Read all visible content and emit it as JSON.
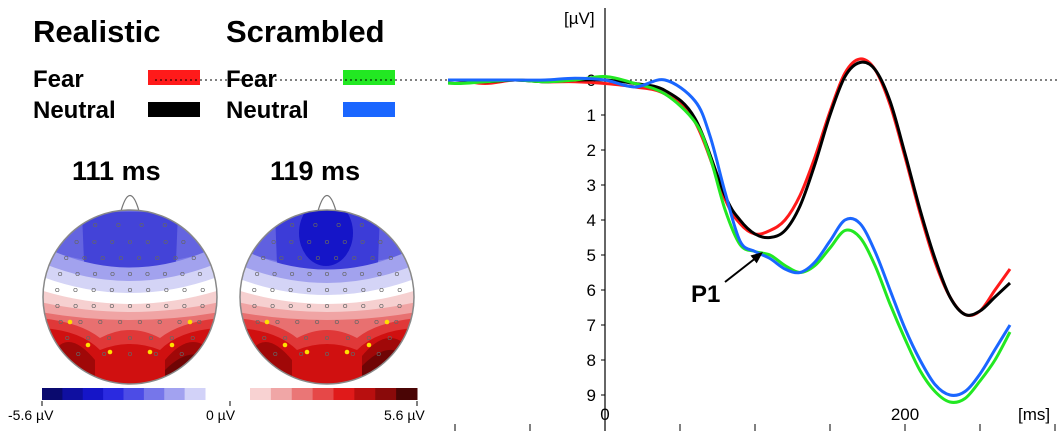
{
  "headers": {
    "realistic": "Realistic",
    "scrambled": "Scrambled"
  },
  "legend": {
    "realistic": [
      {
        "label": "Fear",
        "color": "#ff1a1a"
      },
      {
        "label": "Neutral",
        "color": "#000000"
      }
    ],
    "scrambled": [
      {
        "label": "Fear",
        "color": "#22e822"
      },
      {
        "label": "Neutral",
        "color": "#1a66ff"
      }
    ]
  },
  "topomaps": [
    {
      "latency": "111 ms"
    },
    {
      "latency": "119 ms"
    }
  ],
  "colorbar": {
    "min_label": "-5.6 µV",
    "zero_label": "0 µV",
    "max_label": "5.6 µV",
    "negative_colors": [
      "#0a0a6e",
      "#0f0fa0",
      "#1515c8",
      "#2a2ae0",
      "#4c4ce6",
      "#7676ea",
      "#a2a2f0",
      "#d2d2f8"
    ],
    "positive_colors": [
      "#f8d2d2",
      "#f0a6a6",
      "#ea7676",
      "#e64848",
      "#e01a1a",
      "#b80f0f",
      "#8a0a0a",
      "#4a0505"
    ]
  },
  "chart_data": {
    "type": "line",
    "ylabel": "[µV]",
    "xlabel": "[ms]",
    "y_inverted": true,
    "yticks": [
      0,
      1,
      2,
      3,
      4,
      5,
      6,
      7,
      8,
      9
    ],
    "xticks_labeled": [
      0,
      200
    ],
    "xlim": [
      -300,
      270
    ],
    "ylim": [
      -0.9,
      9.6
    ],
    "annotation": {
      "text": "P1",
      "x": 100,
      "y": 5.0
    },
    "series": [
      {
        "name": "Realistic Fear",
        "color": "#ff1a1a",
        "x": [
          -300,
          -280,
          -260,
          -240,
          -220,
          -200,
          -180,
          -160,
          -140,
          -120,
          -100,
          -80,
          -60,
          -40,
          -20,
          0,
          20,
          40,
          60,
          80,
          90,
          100,
          110,
          120,
          130,
          140,
          150,
          160,
          170,
          180,
          190,
          200,
          210,
          220,
          230,
          240,
          250,
          260,
          270
        ],
        "y": [
          0.1,
          0.0,
          -0.1,
          0.0,
          0.1,
          -0.1,
          0.0,
          0.1,
          -0.1,
          0.05,
          0.0,
          0.1,
          0.0,
          0.05,
          0.05,
          0.1,
          0.2,
          0.4,
          1.2,
          3.4,
          4.1,
          4.4,
          4.3,
          4.0,
          3.3,
          2.2,
          0.9,
          -0.2,
          -0.6,
          -0.3,
          0.7,
          2.2,
          3.8,
          5.2,
          6.2,
          6.7,
          6.6,
          6.0,
          5.4
        ]
      },
      {
        "name": "Realistic Neutral",
        "color": "#000000",
        "x": [
          -300,
          -280,
          -260,
          -240,
          -220,
          -200,
          -180,
          -160,
          -140,
          -120,
          -100,
          -80,
          -60,
          -40,
          -20,
          0,
          20,
          40,
          60,
          80,
          90,
          100,
          110,
          120,
          130,
          140,
          150,
          160,
          170,
          180,
          190,
          200,
          210,
          220,
          230,
          240,
          250,
          260,
          270
        ],
        "y": [
          -0.1,
          0.0,
          0.05,
          0.0,
          -0.05,
          0.0,
          0.1,
          0.0,
          0.0,
          0.05,
          0.0,
          0.05,
          0.0,
          0.05,
          0.0,
          0.0,
          0.1,
          0.3,
          1.1,
          3.3,
          4.0,
          4.4,
          4.5,
          4.3,
          3.6,
          2.4,
          1.0,
          -0.1,
          -0.5,
          -0.3,
          0.6,
          2.1,
          3.7,
          5.1,
          6.2,
          6.7,
          6.6,
          6.2,
          5.8
        ]
      },
      {
        "name": "Scrambled Fear",
        "color": "#22e822",
        "x": [
          -300,
          -280,
          -260,
          -240,
          -220,
          -200,
          -180,
          -160,
          -140,
          -120,
          -100,
          -80,
          -60,
          -40,
          -20,
          0,
          20,
          40,
          60,
          70,
          80,
          90,
          100,
          110,
          120,
          130,
          140,
          150,
          160,
          170,
          180,
          190,
          200,
          210,
          220,
          230,
          240,
          250,
          260,
          270
        ],
        "y": [
          -0.2,
          -0.1,
          0.0,
          0.1,
          -0.1,
          -0.2,
          0.0,
          -0.3,
          -0.2,
          0.0,
          0.1,
          0.05,
          0.0,
          0.05,
          0.0,
          -0.1,
          0.1,
          0.4,
          1.2,
          2.2,
          3.7,
          4.7,
          4.9,
          5.0,
          5.3,
          5.5,
          5.3,
          4.8,
          4.3,
          4.5,
          5.3,
          6.4,
          7.4,
          8.3,
          8.9,
          9.2,
          9.1,
          8.6,
          8.0,
          7.2
        ]
      },
      {
        "name": "Scrambled Neutral",
        "color": "#1a66ff",
        "x": [
          -300,
          -280,
          -260,
          -240,
          -220,
          -200,
          -180,
          -160,
          -140,
          -120,
          -100,
          -80,
          -60,
          -40,
          -20,
          0,
          20,
          40,
          60,
          70,
          80,
          90,
          100,
          110,
          120,
          130,
          140,
          150,
          160,
          170,
          180,
          190,
          200,
          210,
          220,
          230,
          240,
          250,
          260,
          270
        ],
        "y": [
          -0.2,
          -0.1,
          0.0,
          0.0,
          0.0,
          -0.05,
          0.0,
          -0.1,
          0.0,
          0.0,
          0.0,
          0.0,
          0.0,
          0.0,
          -0.05,
          0.0,
          0.2,
          0.0,
          0.6,
          1.6,
          3.2,
          4.6,
          4.9,
          5.1,
          5.4,
          5.5,
          5.2,
          4.6,
          4.0,
          4.1,
          4.9,
          6.0,
          7.1,
          8.0,
          8.7,
          9.0,
          8.9,
          8.4,
          7.7,
          7.0
        ]
      }
    ]
  }
}
